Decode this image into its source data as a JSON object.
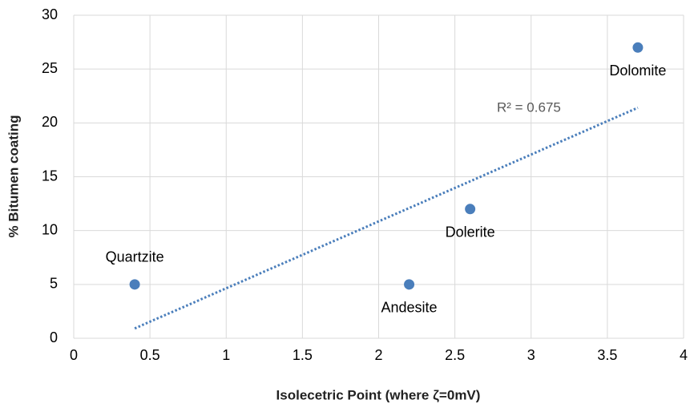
{
  "chart_data": {
    "type": "scatter",
    "x_label": "Isolecetric Point (where ζ=0mV)",
    "y_label": "% Bitumen coating",
    "x": [
      0.4,
      2.2,
      2.6,
      3.7
    ],
    "values": [
      5,
      5,
      12,
      27
    ],
    "point_labels": [
      "Quartzite",
      "Andesite",
      "Dolerite",
      "Dolomite"
    ],
    "label_position": [
      "above",
      "below",
      "below",
      "below"
    ],
    "color": "#4a7ebb",
    "trendline": "linear",
    "annotation": "R² = 0.675",
    "xlim": [
      0,
      4
    ],
    "xticks": [
      0,
      0.5,
      1,
      1.5,
      2,
      2.5,
      3,
      3.5,
      4
    ],
    "ylim": [
      0,
      30
    ],
    "yticks": [
      0,
      5,
      10,
      15,
      20,
      25,
      30
    ],
    "grid": true
  }
}
